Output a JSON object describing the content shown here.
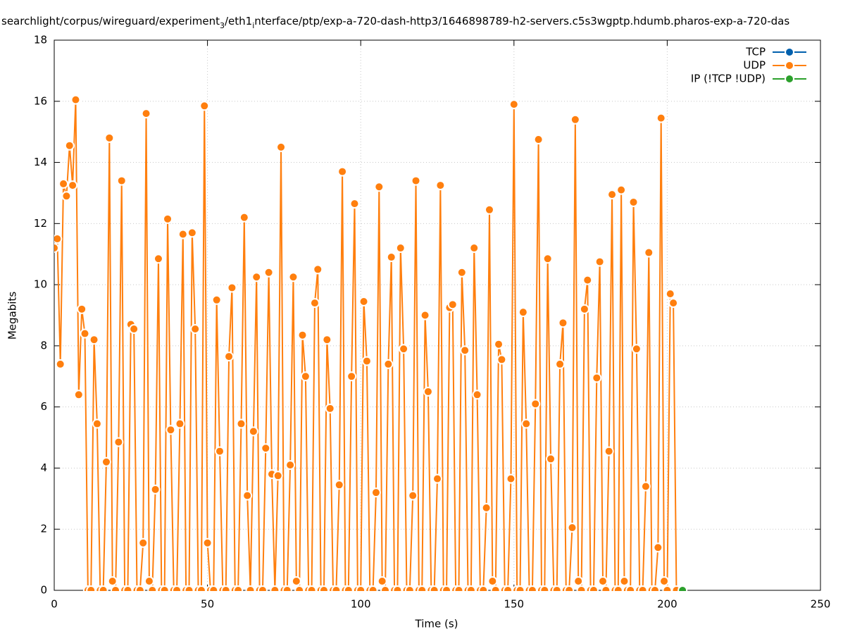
{
  "chart_data": {
    "type": "line",
    "title": [
      "searchlight/corpus/wireguard/experiment",
      "3",
      "/eth1",
      "i",
      "nterface/ptp/exp-a-720-dash-http3/1646898789-h2-servers.c5s3wgptp.hdumb.pharos-exp-a-720-das"
    ],
    "x_label": "Time (s)",
    "y_label": "Megabits",
    "xlim": [
      0,
      250
    ],
    "xticks": [
      0,
      50,
      100,
      150,
      200,
      250
    ],
    "ylim": [
      0,
      18
    ],
    "yticks": [
      0,
      2,
      4,
      6,
      8,
      10,
      12,
      14,
      16,
      18
    ],
    "grid": true,
    "legend": "top-right",
    "series": [
      {
        "name": "TCP",
        "color": "#0060ad",
        "x": [],
        "values": []
      },
      {
        "name": "UDP",
        "color": "#ff7f0e",
        "x": [
          0,
          1,
          2,
          3,
          4,
          5,
          6,
          7,
          8,
          9,
          10,
          11,
          12,
          13,
          14,
          15,
          16,
          17,
          18,
          19,
          20,
          21,
          22,
          23,
          24,
          25,
          26,
          27,
          28,
          29,
          30,
          31,
          32,
          33,
          34,
          35,
          36,
          37,
          38,
          39,
          40,
          41,
          42,
          43,
          44,
          45,
          46,
          47,
          48,
          49,
          50,
          51,
          52,
          53,
          54,
          55,
          56,
          57,
          58,
          59,
          60,
          61,
          62,
          63,
          64,
          65,
          66,
          67,
          68,
          69,
          70,
          71,
          72,
          73,
          74,
          75,
          76,
          77,
          78,
          79,
          80,
          81,
          82,
          83,
          84,
          85,
          86,
          87,
          88,
          89,
          90,
          91,
          92,
          93,
          94,
          95,
          96,
          97,
          98,
          99,
          100,
          101,
          102,
          103,
          104,
          105,
          106,
          107,
          108,
          109,
          110,
          111,
          112,
          113,
          114,
          115,
          116,
          117,
          118,
          119,
          120,
          121,
          122,
          123,
          124,
          125,
          126,
          127,
          128,
          129,
          130,
          131,
          132,
          133,
          134,
          135,
          136,
          137,
          138,
          139,
          140,
          141,
          142,
          143,
          144,
          145,
          146,
          147,
          148,
          149,
          150,
          151,
          152,
          153,
          154,
          155,
          156,
          157,
          158,
          159,
          160,
          161,
          162,
          163,
          164,
          165,
          166,
          167,
          168,
          169,
          170,
          171,
          172,
          173,
          174,
          175,
          176,
          177,
          178,
          179,
          180,
          181,
          182,
          183,
          184,
          185,
          186,
          187,
          188,
          189,
          190,
          191,
          192,
          193,
          194,
          195,
          196,
          197,
          198,
          199,
          200,
          201,
          202,
          203
        ],
        "values": [
          11.2,
          11.5,
          7.4,
          13.3,
          12.9,
          14.55,
          13.25,
          16.05,
          6.4,
          9.2,
          8.4,
          0,
          0,
          8.2,
          5.45,
          0,
          0,
          4.2,
          14.8,
          0.3,
          0,
          4.85,
          13.4,
          0,
          0,
          8.7,
          8.55,
          0,
          0,
          1.55,
          15.6,
          0.3,
          0,
          3.3,
          10.85,
          0,
          0,
          12.15,
          5.25,
          0,
          0,
          5.45,
          11.65,
          0,
          0,
          11.7,
          8.55,
          0,
          0,
          15.85,
          1.55,
          0,
          0,
          9.5,
          4.55,
          0,
          0,
          7.65,
          9.9,
          0,
          0,
          5.45,
          12.2,
          3.1,
          0,
          5.2,
          10.25,
          0,
          0,
          4.65,
          10.4,
          3.8,
          0,
          3.75,
          14.5,
          0,
          0,
          4.1,
          10.25,
          0.3,
          0,
          8.35,
          7.0,
          0,
          0,
          9.4,
          10.5,
          0,
          0,
          8.2,
          5.95,
          0,
          0,
          3.45,
          13.7,
          0,
          0,
          7.0,
          12.65,
          0,
          0,
          9.45,
          7.5,
          0,
          0,
          3.2,
          13.2,
          0.3,
          0,
          7.4,
          10.9,
          0,
          0,
          11.2,
          7.9,
          0,
          0,
          3.1,
          13.4,
          0,
          0,
          9.0,
          6.5,
          0,
          0,
          3.65,
          13.25,
          0,
          0,
          9.25,
          9.35,
          0,
          0,
          10.4,
          7.85,
          0,
          0,
          11.2,
          6.4,
          0,
          0,
          2.7,
          12.45,
          0.3,
          0,
          8.05,
          7.55,
          0,
          0,
          3.65,
          15.9,
          0,
          0,
          9.1,
          5.45,
          0,
          0,
          6.1,
          14.75,
          0,
          0,
          10.85,
          4.3,
          0,
          0,
          7.4,
          8.75,
          0,
          0,
          2.05,
          15.4,
          0.3,
          0,
          9.2,
          10.15,
          0,
          0,
          6.95,
          10.75,
          0.3,
          0,
          4.55,
          12.95,
          0,
          0,
          13.1,
          0.3,
          0,
          0,
          12.7,
          7.9,
          0,
          0,
          3.4,
          11.05,
          0,
          0,
          1.4,
          15.45,
          0.3,
          0,
          9.7,
          9.4,
          0
        ]
      },
      {
        "name": "IP (!TCP  !UDP)",
        "color": "#2ca02c",
        "x": [
          205
        ],
        "values": [
          0
        ]
      }
    ]
  }
}
